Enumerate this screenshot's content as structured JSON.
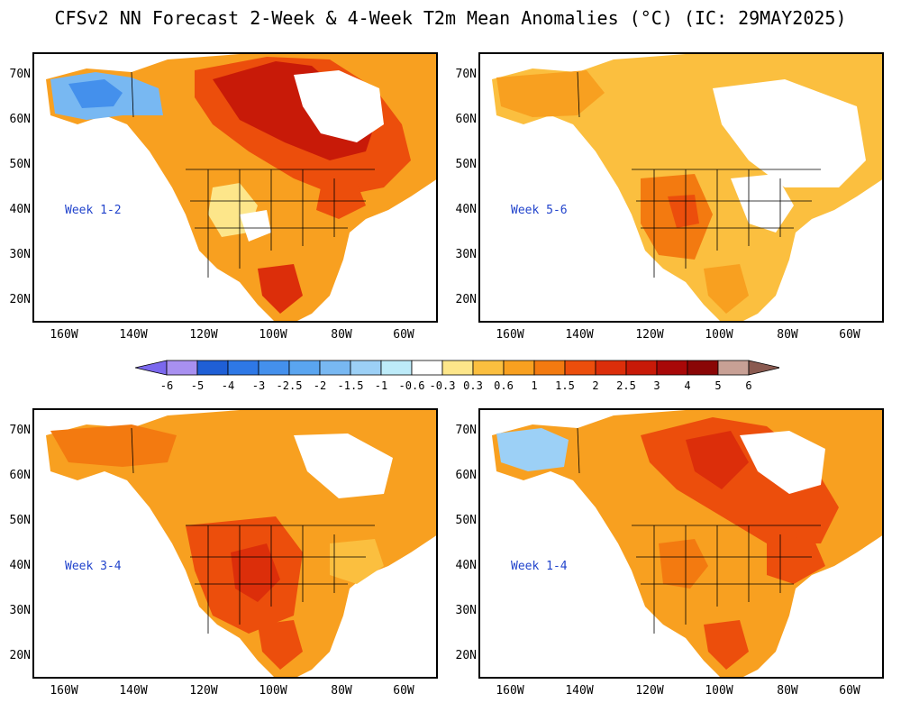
{
  "title": "CFSv2 NN Forecast 2-Week & 4-Week T2m Mean Anomalies (°C) (IC: 29MAY2025)",
  "lat_labels": [
    "70N",
    "60N",
    "50N",
    "40N",
    "30N",
    "20N"
  ],
  "lon_labels": [
    "160W",
    "140W",
    "120W",
    "100W",
    "80W",
    "60W"
  ],
  "panels": [
    {
      "label": "Week 1-2",
      "name": "week-1-2"
    },
    {
      "label": "Week 5-6",
      "name": "week-5-6"
    },
    {
      "label": "Week 3-4",
      "name": "week-3-4"
    },
    {
      "label": "Week 1-4",
      "name": "week-1-4"
    }
  ],
  "colorbar": {
    "labels": [
      "-6",
      "-5",
      "-4",
      "-3",
      "-2.5",
      "-2",
      "-1.5",
      "-1",
      "-0.6",
      "-0.3",
      "0.3",
      "0.6",
      "1",
      "1.5",
      "2",
      "2.5",
      "3",
      "4",
      "5",
      "6"
    ],
    "colors": [
      "#7b68ee",
      "#a890f0",
      "#1f5fd6",
      "#2e78e6",
      "#4490ec",
      "#5aa5f0",
      "#78b8f2",
      "#9cd0f6",
      "#bdebf9",
      "#ffffff",
      "#fde68a",
      "#fbbf3f",
      "#f8a020",
      "#f37a10",
      "#ec4e0c",
      "#dc2e0a",
      "#c81a08",
      "#a80808",
      "#8a0606",
      "#c8a095",
      "#8a5a50"
    ]
  }
}
